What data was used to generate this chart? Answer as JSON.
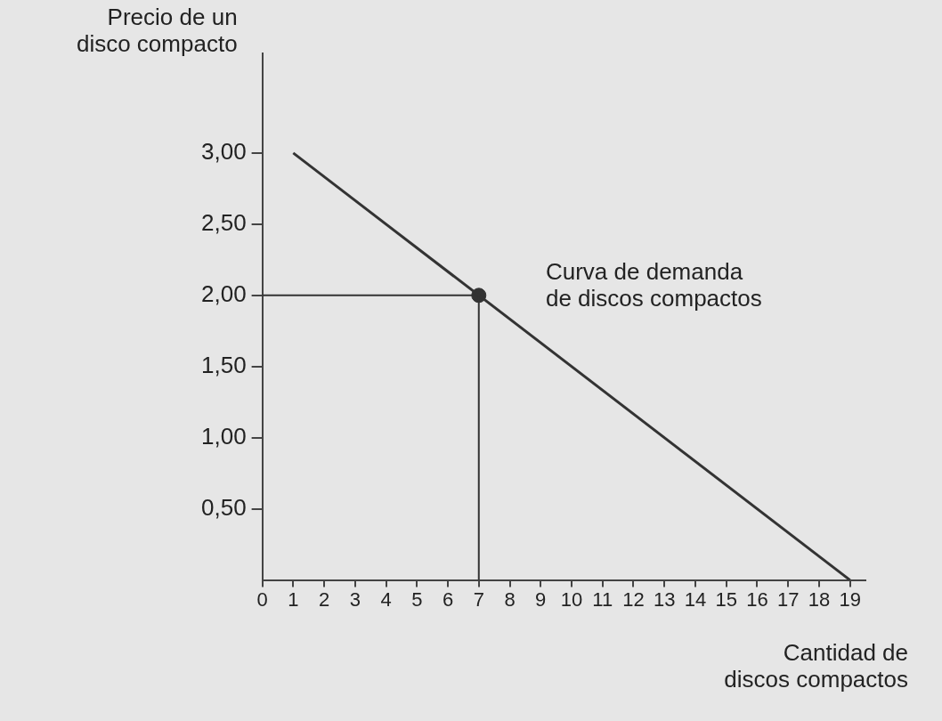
{
  "chart_data": {
    "type": "line",
    "xlabel": "Cantidad de\ndiscos compactos",
    "ylabel": "Precio de un\ndisco compacto",
    "xlim": [
      0,
      19.5
    ],
    "xticks": [
      0,
      1,
      2,
      3,
      4,
      5,
      6,
      7,
      8,
      9,
      10,
      11,
      12,
      13,
      14,
      15,
      16,
      17,
      18,
      19
    ],
    "ylim": [
      0,
      3.7
    ],
    "yticks": [
      {
        "value": 0.5,
        "label": "0,50"
      },
      {
        "value": 1,
        "label": "1,00"
      },
      {
        "value": 1.5,
        "label": "1,50"
      },
      {
        "value": 2,
        "label": "2,00"
      },
      {
        "value": 2.5,
        "label": "2,50"
      },
      {
        "value": 3,
        "label": "3,00"
      }
    ],
    "grid": false,
    "legend": false,
    "series": [
      {
        "color": "#333333",
        "x": [
          1,
          19
        ],
        "values": [
          3,
          0
        ],
        "marker": "none"
      },
      {
        "color": "#333333",
        "x": [
          0,
          7
        ],
        "values": [
          2,
          2
        ],
        "marker": "none"
      },
      {
        "color": "#333333",
        "x": [
          7,
          7
        ],
        "values": [
          2,
          0
        ],
        "marker": "none"
      },
      {
        "type": "scatter",
        "color": "#333333",
        "x": [
          7
        ],
        "values": [
          2
        ],
        "marker": "circle"
      }
    ],
    "annotations": [
      "Curva de demanda\nde discos compactos"
    ]
  }
}
